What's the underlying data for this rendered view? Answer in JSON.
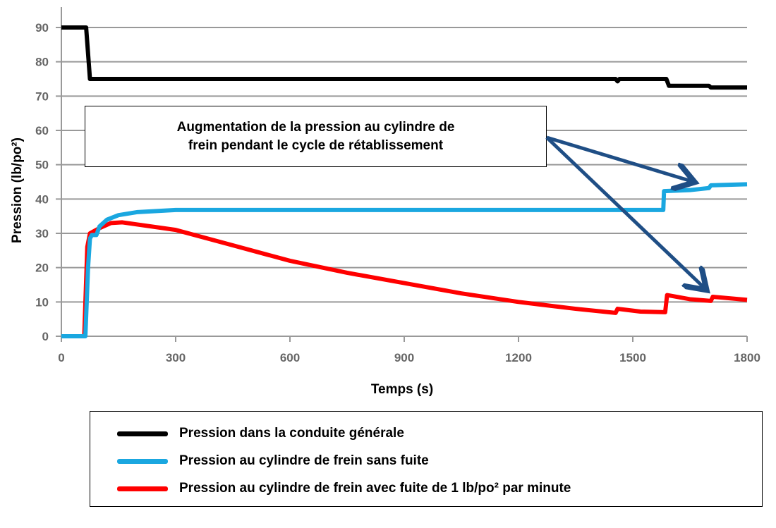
{
  "chart_data": {
    "type": "line",
    "title": "",
    "xlabel": "Temps (s)",
    "ylabel": "Pression (lb/po²)",
    "xlim": [
      0,
      1800
    ],
    "ylim": [
      0,
      90
    ],
    "xticks": [
      0,
      300,
      600,
      900,
      1200,
      1500,
      1800
    ],
    "yticks": [
      0,
      10,
      20,
      30,
      40,
      50,
      60,
      70,
      80,
      90
    ],
    "grid": "horizontal",
    "legend_position": "bottom",
    "series": [
      {
        "name": "Pression dans la conduite générale",
        "color": "#000000",
        "points": [
          [
            0,
            90
          ],
          [
            65,
            90
          ],
          [
            75,
            75
          ],
          [
            1455,
            75
          ],
          [
            1460,
            74.3
          ],
          [
            1465,
            75
          ],
          [
            1588,
            75
          ],
          [
            1595,
            73
          ],
          [
            1700,
            73
          ],
          [
            1705,
            72.5
          ],
          [
            1800,
            72.5
          ]
        ]
      },
      {
        "name": "Pression au cylindre de frein sans fuite",
        "color": "#1aa7e0",
        "points": [
          [
            0,
            0
          ],
          [
            63,
            0
          ],
          [
            70,
            20
          ],
          [
            75,
            28.5
          ],
          [
            80,
            29.5
          ],
          [
            92,
            29.5
          ],
          [
            100,
            32
          ],
          [
            120,
            34
          ],
          [
            150,
            35.3
          ],
          [
            200,
            36.2
          ],
          [
            300,
            36.8
          ],
          [
            1580,
            36.8
          ],
          [
            1582,
            42.3
          ],
          [
            1650,
            42.6
          ],
          [
            1700,
            43.2
          ],
          [
            1705,
            44
          ],
          [
            1800,
            44.3
          ]
        ]
      },
      {
        "name": "Pression au cylindre de frein avec fuite de 1 lb/po² par minute",
        "color": "#ff0000",
        "points": [
          [
            0,
            0
          ],
          [
            60,
            0
          ],
          [
            68,
            26
          ],
          [
            75,
            30
          ],
          [
            100,
            31.5
          ],
          [
            130,
            33
          ],
          [
            160,
            33.2
          ],
          [
            300,
            31
          ],
          [
            450,
            26.5
          ],
          [
            600,
            22
          ],
          [
            750,
            18.5
          ],
          [
            900,
            15.5
          ],
          [
            1050,
            12.5
          ],
          [
            1200,
            10
          ],
          [
            1350,
            8
          ],
          [
            1455,
            6.8
          ],
          [
            1460,
            8
          ],
          [
            1520,
            7.2
          ],
          [
            1585,
            7
          ],
          [
            1590,
            12
          ],
          [
            1650,
            10.8
          ],
          [
            1705,
            10.3
          ],
          [
            1710,
            11.5
          ],
          [
            1800,
            10.6
          ]
        ]
      }
    ],
    "annotation": {
      "line1": "Augmentation de la pression au cylindre de",
      "line2": "frein pendant le cycle de rétablissement"
    }
  }
}
